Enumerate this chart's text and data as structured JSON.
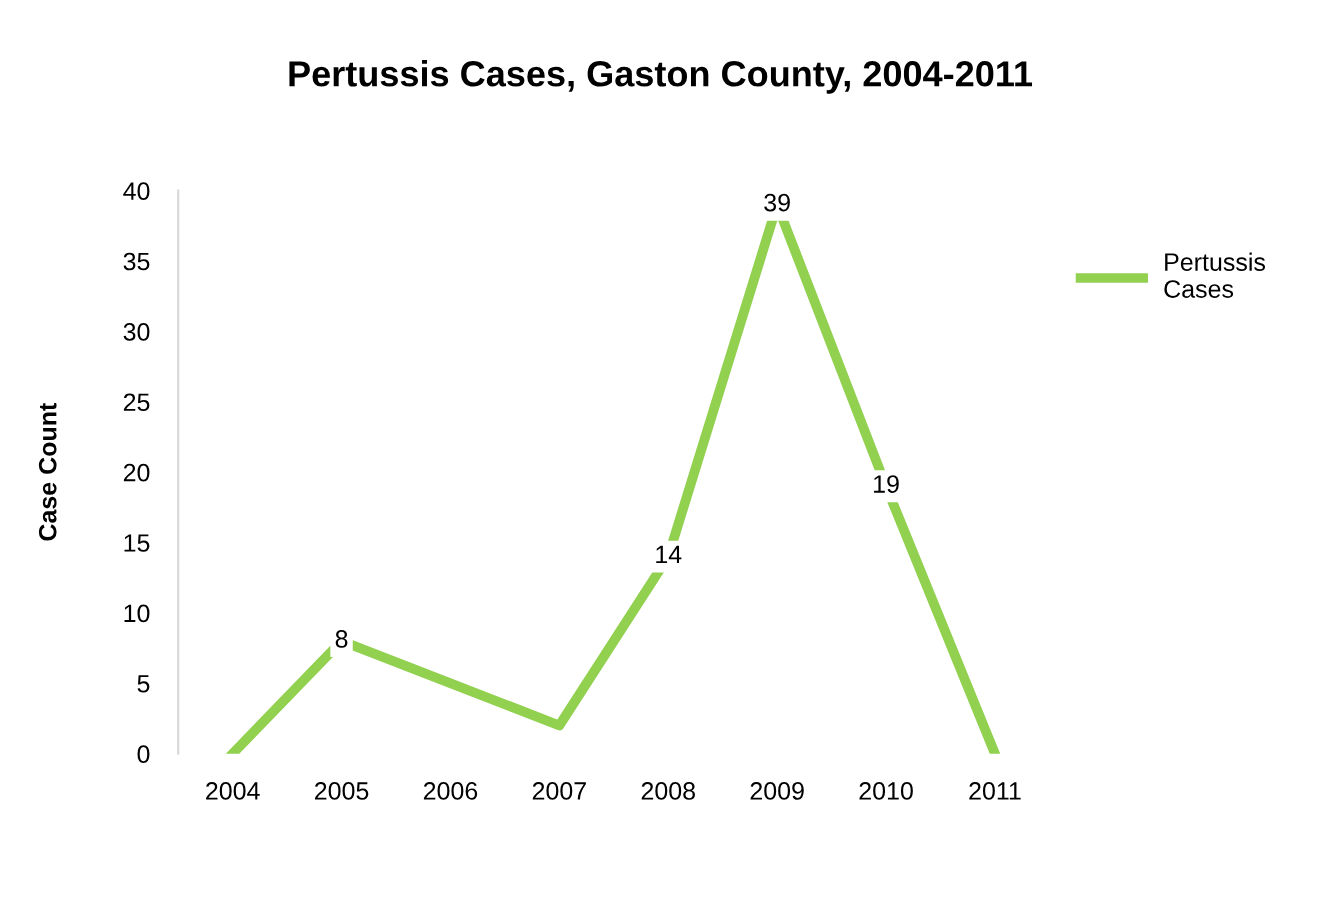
{
  "chart_data": {
    "type": "line",
    "title": "Pertussis Cases, Gaston County, 2004-2011",
    "ylabel": "Case Count",
    "categories": [
      "2004",
      "2005",
      "2006",
      "2007",
      "2008",
      "2009",
      "2010",
      "2011"
    ],
    "series": [
      {
        "name": "Pertussis Cases",
        "color": "#92d050",
        "values": [
          0,
          8,
          5,
          2,
          14,
          39,
          19,
          0
        ],
        "value_labels": [
          null,
          "8",
          null,
          null,
          "14",
          "39",
          "19",
          null
        ]
      }
    ],
    "ylim": [
      0,
      40
    ],
    "yticks": [
      0,
      5,
      10,
      15,
      20,
      25,
      30,
      35,
      40
    ],
    "grid": false,
    "legend": "top right",
    "line_style": "solid"
  }
}
